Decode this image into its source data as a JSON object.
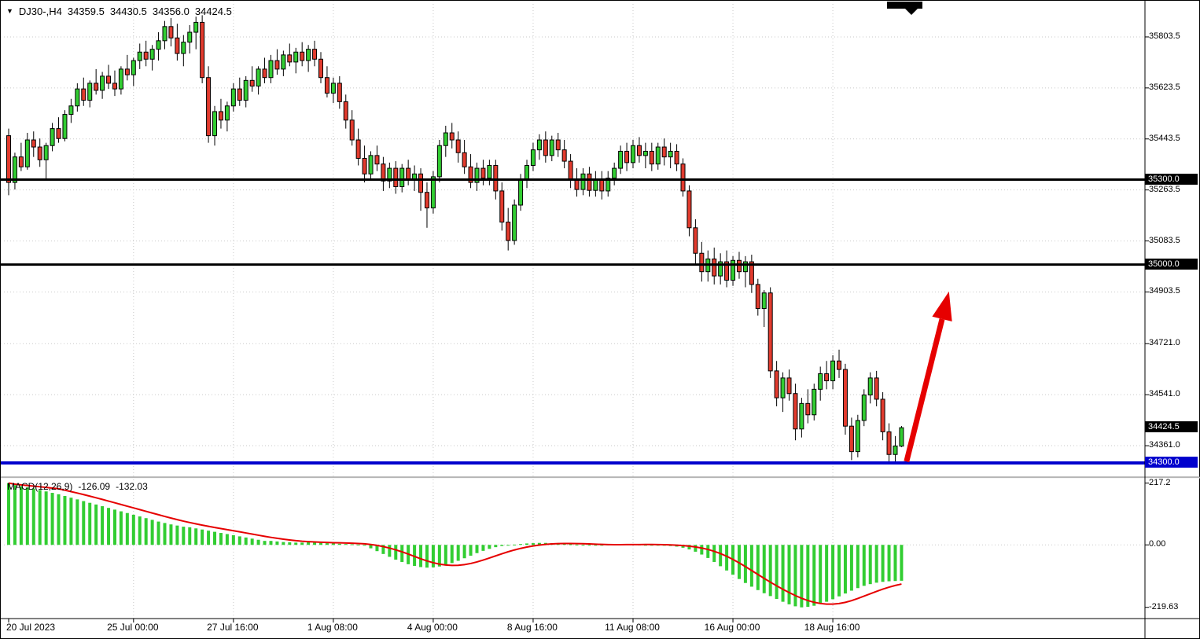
{
  "header": {
    "dropdown_icon": "▼",
    "symbol_period": "DJ30-,H4",
    "open": "34359.5",
    "high": "34430.5",
    "low": "34356.0",
    "close": "34424.5"
  },
  "indicator": {
    "label": "MACD(12,26,9)",
    "main_value": "-126.09",
    "signal_value": "-132.03"
  },
  "colors": {
    "bull": "#32cd32",
    "bear": "#e23b2e",
    "histogram": "#32cd32",
    "signal": "#e60000",
    "arrow": "#e60000",
    "level_black": "#000000",
    "level_blue": "#0000cd",
    "grid": "#c9c9c9"
  },
  "objects": {
    "hlines": [
      {
        "price": 35300.0,
        "color": "#000000",
        "width": 3,
        "badge": "35300.0"
      },
      {
        "price": 35000.0,
        "color": "#000000",
        "width": 3,
        "badge": "35000.0"
      },
      {
        "price": 34300.0,
        "color": "#0000cd",
        "width": 4,
        "badge": "34300.0"
      }
    ],
    "arrow": {
      "color": "#e60000",
      "from": {
        "bar": 143.8,
        "price": 34305
      },
      "to": {
        "bar": 150.6,
        "price": 34905
      }
    }
  },
  "chart_data": [
    {
      "type": "candlestick",
      "symbol": "DJ30-",
      "timeframe": "H4",
      "y_range": [
        34253,
        35931
      ],
      "up_color": "#32cd32",
      "down_color": "#e23b2e",
      "y_ticks": [
        {
          "label": "35803.5",
          "price": 35803.5
        },
        {
          "label": "35623.5",
          "price": 35623.5
        },
        {
          "label": "35443.5",
          "price": 35443.5
        },
        {
          "label": "35263.5",
          "price": 35263.5
        },
        {
          "label": "35083.5",
          "price": 35083.5
        },
        {
          "label": "34903.5",
          "price": 34903.5
        },
        {
          "label": "34721.0",
          "price": 34721.0
        },
        {
          "label": "34541.0",
          "price": 34541.0
        },
        {
          "label": "34361.0",
          "price": 34361.0
        }
      ],
      "price_badges": [
        {
          "label": "35300.0",
          "price": 35300.0,
          "bg": "#000000"
        },
        {
          "label": "35000.0",
          "price": 35000.0,
          "bg": "#000000"
        },
        {
          "label": "34424.5",
          "price": 34424.5,
          "bg": "#000000"
        },
        {
          "label": "34300.0",
          "price": 34300.0,
          "bg": "#0000cd"
        }
      ],
      "x_ticks": [
        {
          "label": "20 Jul 2023",
          "bar": 0
        },
        {
          "label": "25 Jul 00:00",
          "bar": 20
        },
        {
          "label": "27 Jul 16:00",
          "bar": 36
        },
        {
          "label": "1 Aug 08:00",
          "bar": 52
        },
        {
          "label": "4 Aug 00:00",
          "bar": 68
        },
        {
          "label": "8 Aug 16:00",
          "bar": 84
        },
        {
          "label": "11 Aug 08:00",
          "bar": 100
        },
        {
          "label": "16 Aug 00:00",
          "bar": 116
        },
        {
          "label": "18 Aug 16:00",
          "bar": 132
        }
      ],
      "candles": [
        [
          35455,
          35480,
          35245,
          35290
        ],
        [
          35290,
          35395,
          35265,
          35380
        ],
        [
          35380,
          35430,
          35330,
          35345
        ],
        [
          35345,
          35465,
          35335,
          35440
        ],
        [
          35440,
          35470,
          35380,
          35415
        ],
        [
          35415,
          35445,
          35345,
          35370
        ],
        [
          35370,
          35430,
          35300,
          35420
        ],
        [
          35420,
          35500,
          35400,
          35480
        ],
        [
          35480,
          35520,
          35430,
          35445
        ],
        [
          35445,
          35545,
          35435,
          35530
        ],
        [
          35530,
          35585,
          35500,
          35560
        ],
        [
          35560,
          35640,
          35540,
          35620
        ],
        [
          35620,
          35660,
          35560,
          35580
        ],
        [
          35580,
          35650,
          35555,
          35640
        ],
        [
          35640,
          35690,
          35600,
          35615
        ],
        [
          35615,
          35680,
          35585,
          35665
        ],
        [
          35665,
          35705,
          35620,
          35640
        ],
        [
          35640,
          35685,
          35595,
          35620
        ],
        [
          35620,
          35700,
          35600,
          35690
        ],
        [
          35690,
          35740,
          35650,
          35670
        ],
        [
          35670,
          35730,
          35630,
          35720
        ],
        [
          35720,
          35780,
          35690,
          35750
        ],
        [
          35750,
          35790,
          35700,
          35725
        ],
        [
          35725,
          35775,
          35685,
          35760
        ],
        [
          35760,
          35820,
          35720,
          35790
        ],
        [
          35790,
          35860,
          35760,
          35840
        ],
        [
          35840,
          35870,
          35770,
          35800
        ],
        [
          35800,
          35850,
          35720,
          35745
        ],
        [
          35745,
          35810,
          35700,
          35785
        ],
        [
          35785,
          35845,
          35745,
          35820
        ],
        [
          35820,
          35875,
          35760,
          35855
        ],
        [
          35855,
          35880,
          35640,
          35660
        ],
        [
          35660,
          35700,
          35430,
          35455
        ],
        [
          35455,
          35560,
          35420,
          35540
        ],
        [
          35540,
          35585,
          35480,
          35510
        ],
        [
          35510,
          35575,
          35470,
          35560
        ],
        [
          35560,
          35640,
          35540,
          35620
        ],
        [
          35620,
          35660,
          35560,
          35580
        ],
        [
          35580,
          35665,
          35555,
          35650
        ],
        [
          35650,
          35700,
          35610,
          35630
        ],
        [
          35630,
          35700,
          35600,
          35690
        ],
        [
          35690,
          35730,
          35640,
          35660
        ],
        [
          35660,
          35740,
          35640,
          35720
        ],
        [
          35720,
          35760,
          35670,
          35690
        ],
        [
          35690,
          35755,
          35665,
          35740
        ],
        [
          35740,
          35780,
          35700,
          35715
        ],
        [
          35715,
          35765,
          35675,
          35750
        ],
        [
          35750,
          35785,
          35700,
          35720
        ],
        [
          35720,
          35775,
          35680,
          35760
        ],
        [
          35760,
          35790,
          35700,
          35725
        ],
        [
          35725,
          35750,
          35640,
          35660
        ],
        [
          35660,
          35700,
          35590,
          35605
        ],
        [
          35605,
          35660,
          35570,
          35640
        ],
        [
          35640,
          35665,
          35550,
          35575
        ],
        [
          35575,
          35600,
          35480,
          35510
        ],
        [
          35510,
          35545,
          35420,
          35440
        ],
        [
          35440,
          35480,
          35350,
          35375
        ],
        [
          35375,
          35420,
          35290,
          35320
        ],
        [
          35320,
          35400,
          35300,
          35385
        ],
        [
          35385,
          35420,
          35330,
          35355
        ],
        [
          35355,
          35380,
          35260,
          35295
        ],
        [
          35295,
          35360,
          35270,
          35340
        ],
        [
          35340,
          35365,
          35250,
          35275
        ],
        [
          35275,
          35355,
          35255,
          35340
        ],
        [
          35340,
          35370,
          35280,
          35300
        ],
        [
          35300,
          35350,
          35260,
          35320
        ],
        [
          35320,
          35340,
          35190,
          35255
        ],
        [
          35255,
          35290,
          35130,
          35200
        ],
        [
          35200,
          35330,
          35180,
          35310
        ],
        [
          35310,
          35440,
          35290,
          35420
        ],
        [
          35420,
          35490,
          35380,
          35465
        ],
        [
          35465,
          35500,
          35410,
          35440
        ],
        [
          35440,
          35470,
          35360,
          35395
        ],
        [
          35395,
          35440,
          35320,
          35345
        ],
        [
          35345,
          35390,
          35270,
          35290
        ],
        [
          35290,
          35360,
          35260,
          35340
        ],
        [
          35340,
          35370,
          35280,
          35305
        ],
        [
          35305,
          35370,
          35280,
          35350
        ],
        [
          35350,
          35370,
          35230,
          35260
        ],
        [
          35260,
          35290,
          35120,
          35150
        ],
        [
          35150,
          35200,
          35050,
          35085
        ],
        [
          35085,
          35230,
          35070,
          35210
        ],
        [
          35210,
          35320,
          35190,
          35300
        ],
        [
          35300,
          35370,
          35270,
          35350
        ],
        [
          35350,
          35430,
          35330,
          35405
        ],
        [
          35405,
          35460,
          35370,
          35440
        ],
        [
          35440,
          35470,
          35360,
          35385
        ],
        [
          35385,
          35455,
          35365,
          35440
        ],
        [
          35440,
          35465,
          35380,
          35405
        ],
        [
          35405,
          35440,
          35340,
          35365
        ],
        [
          35365,
          35390,
          35270,
          35300
        ],
        [
          35300,
          35340,
          35240,
          35265
        ],
        [
          35265,
          35340,
          35245,
          35320
        ],
        [
          35320,
          35345,
          35240,
          35262
        ],
        [
          35262,
          35330,
          35240,
          35300
        ],
        [
          35300,
          35330,
          35230,
          35260
        ],
        [
          35260,
          35330,
          35240,
          35305
        ],
        [
          35305,
          35360,
          35280,
          35340
        ],
        [
          35340,
          35420,
          35320,
          35400
        ],
        [
          35400,
          35430,
          35330,
          35360
        ],
        [
          35360,
          35440,
          35340,
          35420
        ],
        [
          35420,
          35450,
          35360,
          35385
        ],
        [
          35385,
          35430,
          35340,
          35400
        ],
        [
          35400,
          35430,
          35330,
          35355
        ],
        [
          35355,
          35430,
          35335,
          35415
        ],
        [
          35415,
          35445,
          35350,
          35380
        ],
        [
          35380,
          35430,
          35340,
          35400
        ],
        [
          35400,
          35425,
          35330,
          35355
        ],
        [
          35355,
          35375,
          35240,
          35260
        ],
        [
          35260,
          35280,
          35100,
          35130
        ],
        [
          35130,
          35160,
          35000,
          35040
        ],
        [
          35040,
          35080,
          34940,
          34975
        ],
        [
          34975,
          35050,
          34940,
          35020
        ],
        [
          35020,
          35060,
          34930,
          34960
        ],
        [
          34960,
          35040,
          34930,
          35010
        ],
        [
          35010,
          35050,
          34920,
          34945
        ],
        [
          34945,
          35030,
          34925,
          35015
        ],
        [
          35015,
          35045,
          34950,
          34975
        ],
        [
          34975,
          35030,
          34920,
          35010
        ],
        [
          35010,
          35035,
          34900,
          34930
        ],
        [
          34930,
          34950,
          34820,
          34845
        ],
        [
          34845,
          34910,
          34780,
          34900
        ],
        [
          34900,
          34920,
          34600,
          34625
        ],
        [
          34625,
          34660,
          34500,
          34530
        ],
        [
          34530,
          34620,
          34480,
          34600
        ],
        [
          34600,
          34630,
          34520,
          34545
        ],
        [
          34545,
          34580,
          34380,
          34420
        ],
        [
          34420,
          34530,
          34390,
          34510
        ],
        [
          34510,
          34560,
          34440,
          34470
        ],
        [
          34470,
          34580,
          34450,
          34560
        ],
        [
          34560,
          34640,
          34520,
          34615
        ],
        [
          34615,
          34660,
          34560,
          34590
        ],
        [
          34590,
          34680,
          34560,
          34660
        ],
        [
          34660,
          34700,
          34600,
          34630
        ],
        [
          34630,
          34650,
          34400,
          34430
        ],
        [
          34430,
          34460,
          34310,
          34340
        ],
        [
          34340,
          34470,
          34320,
          34450
        ],
        [
          34450,
          34560,
          34430,
          34540
        ],
        [
          34540,
          34620,
          34510,
          34600
        ],
        [
          34600,
          34625,
          34500,
          34525
        ],
        [
          34525,
          34550,
          34380,
          34410
        ],
        [
          34410,
          34440,
          34300,
          34330
        ],
        [
          34330,
          34395,
          34295,
          34360
        ],
        [
          34359.5,
          34430.5,
          34356.0,
          34424.5
        ]
      ]
    },
    {
      "type": "bar",
      "name": "MACD",
      "params": "12,26,9",
      "y_range": [
        -259.1,
        230.1
      ],
      "hist_color": "#32cd32",
      "signal_color": "#e60000",
      "signal_period": 9,
      "last_main": -126.09,
      "last_signal": -132.03,
      "y_ticks": [
        {
          "label": "217.2",
          "value": 217.2
        },
        {
          "label": "0.00",
          "value": 0
        },
        {
          "label": "-219.63",
          "value": -219.63
        }
      ],
      "histogram": [
        217.2,
        210,
        206,
        202,
        198,
        193,
        188,
        183,
        178,
        172,
        166,
        160,
        154,
        148,
        142,
        136,
        130,
        124,
        118,
        112,
        106,
        100,
        94,
        88,
        82,
        77,
        72,
        68,
        64,
        62,
        58,
        54,
        50,
        46,
        42,
        38,
        34,
        30,
        26,
        22,
        18,
        14,
        14,
        12,
        10,
        9,
        8,
        8,
        9,
        8,
        7,
        6,
        5,
        4,
        3,
        2,
        1,
        -3,
        -12,
        -22,
        -32,
        -42,
        -52,
        -60,
        -68,
        -74,
        -78,
        -80,
        -79,
        -76,
        -71,
        -64,
        -56,
        -47,
        -38,
        -29,
        -21,
        -14,
        -8,
        -4,
        -1,
        1,
        3,
        5,
        6,
        7,
        7,
        6,
        5,
        3,
        2,
        1,
        0,
        -1,
        -1,
        0,
        1,
        2,
        3,
        3,
        2,
        1,
        0,
        -1,
        -2,
        -3,
        -4,
        -6,
        -10,
        -16,
        -24,
        -34,
        -46,
        -60,
        -75,
        -90,
        -105,
        -120,
        -134,
        -147,
        -159,
        -170,
        -180,
        -190,
        -200,
        -209,
        -216,
        -219.63,
        -218,
        -214,
        -208,
        -200,
        -191,
        -181,
        -171,
        -161,
        -152,
        -144,
        -138,
        -133,
        -130,
        -128,
        -127,
        -126.09
      ]
    }
  ]
}
